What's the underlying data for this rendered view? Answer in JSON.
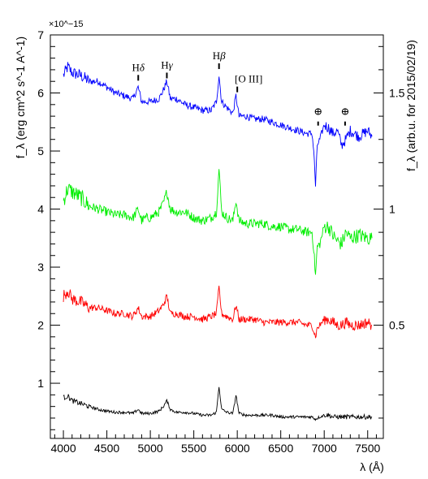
{
  "chart_data": {
    "type": "line",
    "title": "",
    "xlabel": "λ (Å)",
    "ylabel_left": "f_λ (erg cm^2 s^-1 A^-1)",
    "ylabel_right": "f_λ (arb.u. for 2015/02/19)",
    "y_exponent": "×10^−15",
    "xlim": [
      3850,
      7680
    ],
    "ylim_left": [
      0.05,
      7.0
    ],
    "xticks": [
      4000,
      4500,
      5000,
      5500,
      6000,
      6500,
      7000,
      7500
    ],
    "xtick_labels": [
      "4000",
      "4500",
      "5000",
      "5500",
      "6000",
      "6500",
      "7000",
      "7500"
    ],
    "yticks_left": [
      1,
      2,
      3,
      4,
      5,
      6,
      7
    ],
    "ytick_labels_left": [
      "1",
      "2",
      "3",
      "4",
      "5",
      "6",
      "7"
    ],
    "right_axis": {
      "ticks": [
        {
          "label": "0.5",
          "left_value": 2.0
        },
        {
          "label": "1",
          "left_value": 4.0
        },
        {
          "label": "1.5",
          "left_value": 6.0
        }
      ]
    },
    "grid": false,
    "legend": "none",
    "series": [
      {
        "color": "#0000ff",
        "x": [
          4000,
          4050,
          4100,
          4200,
          4300,
          4400,
          4500,
          4600,
          4700,
          4800,
          4860,
          4900,
          4950,
          5000,
          5100,
          5150,
          5190,
          5230,
          5300,
          5400,
          5500,
          5600,
          5700,
          5760,
          5790,
          5820,
          5880,
          5950,
          5985,
          6020,
          6100,
          6200,
          6300,
          6400,
          6500,
          6600,
          6700,
          6800,
          6860,
          6880,
          6900,
          6920,
          6950,
          7000,
          7050,
          7100,
          7150,
          7200,
          7250,
          7300,
          7400,
          7500,
          7550
        ],
        "y": [
          6.3,
          6.45,
          6.35,
          6.3,
          6.2,
          6.2,
          6.1,
          6.0,
          5.95,
          5.9,
          6.1,
          5.85,
          5.85,
          5.85,
          5.9,
          6.05,
          6.2,
          5.9,
          5.9,
          5.8,
          5.75,
          5.7,
          5.7,
          5.85,
          6.3,
          5.85,
          5.75,
          5.65,
          5.95,
          5.6,
          5.6,
          5.55,
          5.55,
          5.5,
          5.45,
          5.4,
          5.35,
          5.3,
          5.3,
          5.0,
          4.4,
          5.1,
          5.2,
          5.45,
          5.4,
          5.3,
          5.35,
          5.1,
          5.2,
          5.35,
          5.25,
          5.35,
          5.25
        ]
      },
      {
        "color": "#00ee00",
        "x": [
          4000,
          4050,
          4100,
          4200,
          4300,
          4400,
          4500,
          4600,
          4700,
          4800,
          4860,
          4900,
          4950,
          5000,
          5100,
          5150,
          5190,
          5230,
          5300,
          5400,
          5500,
          5600,
          5700,
          5760,
          5790,
          5820,
          5880,
          5950,
          5985,
          6020,
          6100,
          6200,
          6300,
          6400,
          6500,
          6600,
          6700,
          6800,
          6860,
          6880,
          6900,
          6920,
          6950,
          7000,
          7050,
          7100,
          7150,
          7200,
          7250,
          7300,
          7400,
          7500,
          7550
        ],
        "y": [
          4.15,
          4.35,
          4.3,
          4.2,
          4.05,
          4.0,
          3.95,
          3.9,
          3.9,
          3.85,
          4.0,
          3.8,
          3.85,
          3.85,
          3.95,
          4.1,
          4.3,
          4.0,
          3.95,
          3.95,
          3.85,
          3.8,
          3.85,
          3.95,
          4.7,
          3.95,
          3.85,
          3.8,
          4.15,
          3.8,
          3.75,
          3.75,
          3.75,
          3.7,
          3.7,
          3.65,
          3.65,
          3.6,
          3.6,
          3.3,
          2.85,
          3.35,
          3.4,
          3.7,
          3.7,
          3.55,
          3.45,
          3.4,
          3.6,
          3.5,
          3.55,
          3.5,
          3.5
        ]
      },
      {
        "color": "#ff0000",
        "x": [
          4000,
          4050,
          4100,
          4200,
          4300,
          4400,
          4500,
          4600,
          4700,
          4800,
          4860,
          4900,
          4950,
          5000,
          5100,
          5150,
          5190,
          5230,
          5300,
          5400,
          5500,
          5600,
          5700,
          5760,
          5790,
          5820,
          5880,
          5950,
          5985,
          6020,
          6100,
          6200,
          6300,
          6400,
          6500,
          6600,
          6700,
          6800,
          6860,
          6880,
          6900,
          6920,
          6950,
          7000,
          7050,
          7100,
          7150,
          7200,
          7250,
          7300,
          7400,
          7500,
          7550
        ],
        "y": [
          2.5,
          2.6,
          2.45,
          2.4,
          2.3,
          2.3,
          2.25,
          2.2,
          2.2,
          2.15,
          2.3,
          2.15,
          2.15,
          2.15,
          2.25,
          2.35,
          2.5,
          2.2,
          2.2,
          2.15,
          2.15,
          2.1,
          2.15,
          2.2,
          2.65,
          2.2,
          2.15,
          2.1,
          2.35,
          2.1,
          2.1,
          2.1,
          2.05,
          2.05,
          2.05,
          2.05,
          2.05,
          2.0,
          2.0,
          1.9,
          1.8,
          1.95,
          2.0,
          2.1,
          2.1,
          2.05,
          2.0,
          2.0,
          2.05,
          2.0,
          2.0,
          2.05,
          2.0
        ]
      },
      {
        "color": "#000000",
        "x": [
          4000,
          4050,
          4100,
          4200,
          4300,
          4400,
          4500,
          4600,
          4700,
          4800,
          4860,
          4900,
          4950,
          5000,
          5100,
          5150,
          5190,
          5230,
          5300,
          5400,
          5500,
          5600,
          5700,
          5760,
          5790,
          5820,
          5880,
          5950,
          5985,
          6020,
          6100,
          6200,
          6300,
          6400,
          6500,
          6600,
          6700,
          6800,
          6860,
          6880,
          6900,
          6920,
          6950,
          7000,
          7050,
          7100,
          7150,
          7200,
          7250,
          7300,
          7400,
          7500,
          7550
        ],
        "y": [
          0.75,
          0.78,
          0.7,
          0.65,
          0.6,
          0.55,
          0.52,
          0.5,
          0.5,
          0.48,
          0.55,
          0.48,
          0.48,
          0.48,
          0.52,
          0.6,
          0.7,
          0.55,
          0.5,
          0.5,
          0.48,
          0.45,
          0.45,
          0.5,
          0.95,
          0.55,
          0.5,
          0.48,
          0.8,
          0.48,
          0.45,
          0.45,
          0.45,
          0.45,
          0.42,
          0.42,
          0.42,
          0.42,
          0.42,
          0.4,
          0.38,
          0.4,
          0.42,
          0.45,
          0.45,
          0.42,
          0.42,
          0.42,
          0.42,
          0.42,
          0.42,
          0.42,
          0.42
        ]
      }
    ],
    "annotations": [
      {
        "text": "Hδ",
        "x": 4861,
        "y": 6.38
      },
      {
        "text": "Hγ",
        "x": 5190,
        "y": 6.42
      },
      {
        "text": "Hβ",
        "x": 5790,
        "y": 6.58
      },
      {
        "text": "[O III]",
        "x": 6000,
        "y": 6.18
      },
      {
        "text": "⊕",
        "x": 6930,
        "y": 5.62
      },
      {
        "text": "⊕",
        "x": 7240,
        "y": 5.62
      }
    ]
  }
}
